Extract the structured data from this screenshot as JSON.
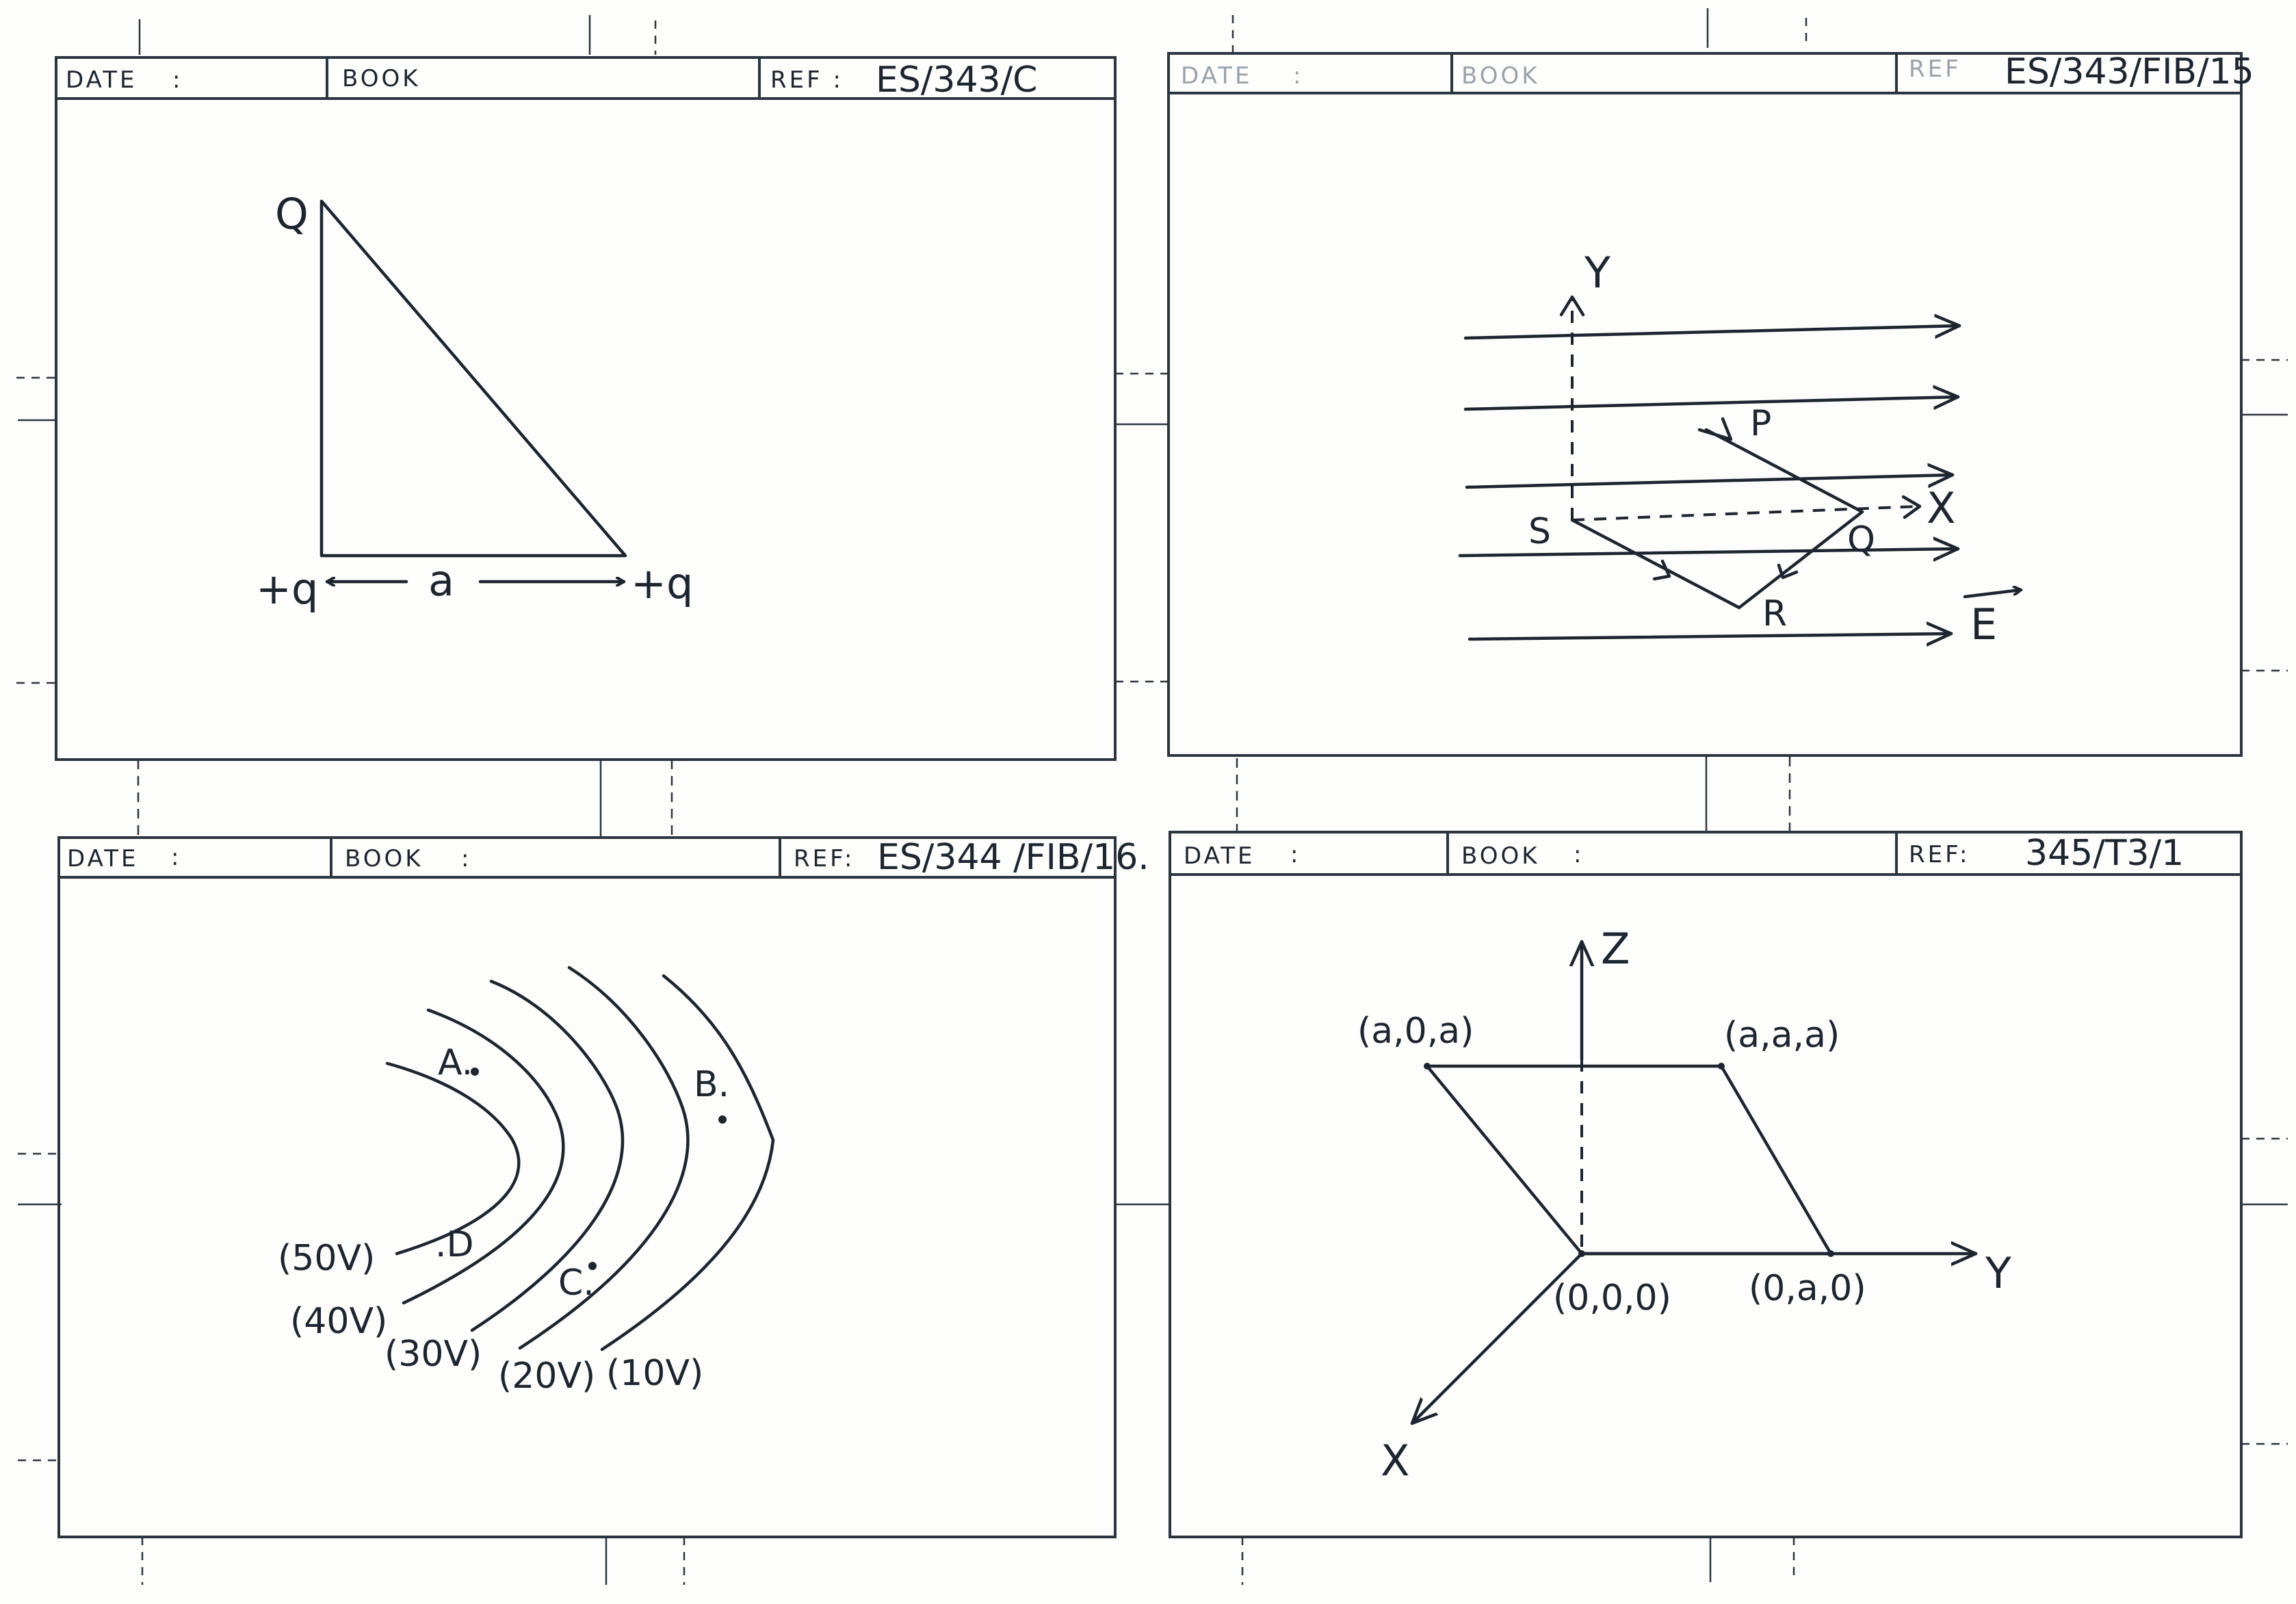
{
  "panels": [
    {
      "header": {
        "date_label": "DATE",
        "date_colon": ":",
        "book_label": "BOOK",
        "ref_label": "REF :",
        "ref_value": "ES/343/C"
      },
      "labels": {
        "top_vertex": "Q",
        "left_charge": "+q",
        "right_charge": "+q",
        "separation": "a"
      }
    },
    {
      "header": {
        "date_label": "DATE",
        "date_colon": ":",
        "book_label": "BOOK",
        "ref_label": "REF",
        "ref_value": "ES/343/FIB/15"
      },
      "labels": {
        "y_axis": "Y",
        "x_axis": "X",
        "p": "P",
        "q": "Q",
        "r": "R",
        "s": "S",
        "field": "E"
      }
    },
    {
      "header": {
        "date_label": "DATE",
        "date_colon": ":",
        "book_label": "BOOK",
        "book_colon": ":",
        "ref_label": "REF:",
        "ref_value": "ES/344 /FIB/16."
      },
      "labels": {
        "a": "A.",
        "b": "B.",
        "c": "C.",
        "d": ".D",
        "v50": "(50V)",
        "v40": "(40V)",
        "v30": "(30V)",
        "v20": "(20V)",
        "v10": "(10V)"
      }
    },
    {
      "header": {
        "date_label": "DATE",
        "date_colon": ":",
        "book_label": "BOOK",
        "book_colon": ":",
        "ref_label": "REF:",
        "ref_value": "345/T3/1"
      },
      "labels": {
        "z_axis": "Z",
        "y_axis": "Y",
        "x_axis": "X",
        "p1": "(a,0,a)",
        "p2": "(a,a,a)",
        "origin": "(0,0,0)",
        "p3": "(0,a,0)"
      }
    }
  ]
}
